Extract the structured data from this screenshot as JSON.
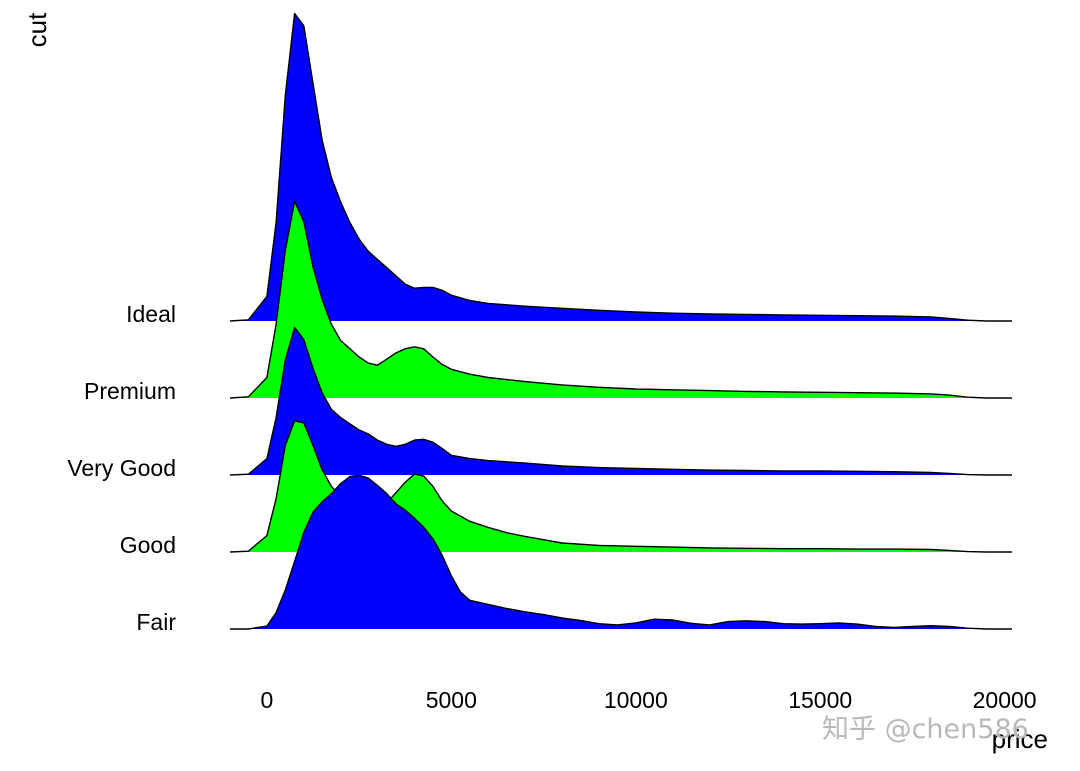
{
  "chart_data": {
    "type": "ridgeline",
    "xlabel": "price",
    "ylabel": "cut",
    "xlim": [
      -1000,
      20200
    ],
    "x_ticks": [
      0,
      5000,
      10000,
      15000,
      20000
    ],
    "x_tick_labels": [
      "0",
      "5000",
      "10000",
      "15000",
      "20000"
    ],
    "grid": false,
    "legend": "none",
    "categories": [
      "Fair",
      "Good",
      "Very Good",
      "Premium",
      "Ideal"
    ],
    "series": [
      {
        "name": "Fair",
        "color": "#0000ff",
        "density": [
          [
            -1000,
            0
          ],
          [
            -500,
            0
          ],
          [
            0,
            0.007
          ],
          [
            250,
            0.04
          ],
          [
            500,
            0.095
          ],
          [
            750,
            0.165
          ],
          [
            1000,
            0.235
          ],
          [
            1250,
            0.285
          ],
          [
            1500,
            0.31
          ],
          [
            1750,
            0.33
          ],
          [
            2000,
            0.355
          ],
          [
            2250,
            0.372
          ],
          [
            2500,
            0.375
          ],
          [
            2750,
            0.368
          ],
          [
            3000,
            0.35
          ],
          [
            3250,
            0.33
          ],
          [
            3500,
            0.305
          ],
          [
            3750,
            0.29
          ],
          [
            4000,
            0.27
          ],
          [
            4250,
            0.248
          ],
          [
            4500,
            0.22
          ],
          [
            4750,
            0.18
          ],
          [
            5000,
            0.13
          ],
          [
            5250,
            0.09
          ],
          [
            5500,
            0.07
          ],
          [
            6000,
            0.06
          ],
          [
            6500,
            0.05
          ],
          [
            7000,
            0.042
          ],
          [
            7500,
            0.035
          ],
          [
            8000,
            0.027
          ],
          [
            8500,
            0.021
          ],
          [
            9000,
            0.013
          ],
          [
            9500,
            0.01
          ],
          [
            10000,
            0.015
          ],
          [
            10500,
            0.024
          ],
          [
            11000,
            0.022
          ],
          [
            11500,
            0.014
          ],
          [
            12000,
            0.01
          ],
          [
            12500,
            0.018
          ],
          [
            13000,
            0.02
          ],
          [
            13500,
            0.018
          ],
          [
            14000,
            0.013
          ],
          [
            14500,
            0.012
          ],
          [
            15000,
            0.013
          ],
          [
            15500,
            0.015
          ],
          [
            16000,
            0.012
          ],
          [
            16500,
            0.006
          ],
          [
            17000,
            0.004
          ],
          [
            17500,
            0.006
          ],
          [
            18000,
            0.008
          ],
          [
            18500,
            0.006
          ],
          [
            19000,
            0.002
          ],
          [
            19500,
            0
          ],
          [
            20200,
            0
          ]
        ]
      },
      {
        "name": "Good",
        "color": "#00ff00",
        "density": [
          [
            -1000,
            0
          ],
          [
            -500,
            0.002
          ],
          [
            0,
            0.04
          ],
          [
            250,
            0.13
          ],
          [
            500,
            0.26
          ],
          [
            750,
            0.32
          ],
          [
            1000,
            0.315
          ],
          [
            1250,
            0.26
          ],
          [
            1500,
            0.2
          ],
          [
            1750,
            0.16
          ],
          [
            2000,
            0.135
          ],
          [
            2250,
            0.12
          ],
          [
            2500,
            0.105
          ],
          [
            2750,
            0.09
          ],
          [
            3000,
            0.095
          ],
          [
            3250,
            0.12
          ],
          [
            3500,
            0.145
          ],
          [
            3750,
            0.17
          ],
          [
            4000,
            0.19
          ],
          [
            4250,
            0.185
          ],
          [
            4500,
            0.16
          ],
          [
            4750,
            0.125
          ],
          [
            5000,
            0.1
          ],
          [
            5500,
            0.075
          ],
          [
            6000,
            0.06
          ],
          [
            6500,
            0.047
          ],
          [
            7000,
            0.038
          ],
          [
            7500,
            0.03
          ],
          [
            8000,
            0.022
          ],
          [
            9000,
            0.016
          ],
          [
            10000,
            0.014
          ],
          [
            11000,
            0.012
          ],
          [
            12000,
            0.01
          ],
          [
            13000,
            0.009
          ],
          [
            14000,
            0.008
          ],
          [
            15000,
            0.008
          ],
          [
            16000,
            0.007
          ],
          [
            17000,
            0.007
          ],
          [
            18000,
            0.006
          ],
          [
            18500,
            0.004
          ],
          [
            19000,
            0.001
          ],
          [
            19500,
            0
          ],
          [
            20200,
            0
          ]
        ]
      },
      {
        "name": "Very Good",
        "color": "#0000ff",
        "density": [
          [
            -1000,
            0
          ],
          [
            -500,
            0.002
          ],
          [
            0,
            0.04
          ],
          [
            250,
            0.14
          ],
          [
            500,
            0.28
          ],
          [
            750,
            0.36
          ],
          [
            1000,
            0.33
          ],
          [
            1250,
            0.26
          ],
          [
            1500,
            0.2
          ],
          [
            1750,
            0.16
          ],
          [
            2000,
            0.14
          ],
          [
            2250,
            0.125
          ],
          [
            2500,
            0.11
          ],
          [
            2750,
            0.1
          ],
          [
            3000,
            0.085
          ],
          [
            3250,
            0.075
          ],
          [
            3500,
            0.07
          ],
          [
            3750,
            0.075
          ],
          [
            4000,
            0.085
          ],
          [
            4250,
            0.087
          ],
          [
            4500,
            0.08
          ],
          [
            4750,
            0.065
          ],
          [
            5000,
            0.048
          ],
          [
            5500,
            0.04
          ],
          [
            6000,
            0.035
          ],
          [
            7000,
            0.029
          ],
          [
            8000,
            0.022
          ],
          [
            9000,
            0.018
          ],
          [
            10000,
            0.016
          ],
          [
            11000,
            0.014
          ],
          [
            12000,
            0.012
          ],
          [
            13000,
            0.011
          ],
          [
            14000,
            0.01
          ],
          [
            15000,
            0.01
          ],
          [
            16000,
            0.009
          ],
          [
            17000,
            0.008
          ],
          [
            18000,
            0.006
          ],
          [
            18500,
            0.004
          ],
          [
            19000,
            0.001
          ],
          [
            19500,
            0
          ],
          [
            20200,
            0
          ]
        ]
      },
      {
        "name": "Premium",
        "color": "#00ff00",
        "density": [
          [
            -1000,
            0
          ],
          [
            -500,
            0.003
          ],
          [
            0,
            0.05
          ],
          [
            250,
            0.18
          ],
          [
            500,
            0.36
          ],
          [
            750,
            0.48
          ],
          [
            1000,
            0.43
          ],
          [
            1250,
            0.32
          ],
          [
            1500,
            0.24
          ],
          [
            1750,
            0.18
          ],
          [
            2000,
            0.14
          ],
          [
            2250,
            0.12
          ],
          [
            2500,
            0.1
          ],
          [
            2750,
            0.085
          ],
          [
            3000,
            0.08
          ],
          [
            3250,
            0.095
          ],
          [
            3500,
            0.11
          ],
          [
            3750,
            0.12
          ],
          [
            4000,
            0.125
          ],
          [
            4250,
            0.12
          ],
          [
            4500,
            0.1
          ],
          [
            4750,
            0.082
          ],
          [
            5000,
            0.07
          ],
          [
            5500,
            0.058
          ],
          [
            6000,
            0.05
          ],
          [
            7000,
            0.04
          ],
          [
            8000,
            0.032
          ],
          [
            9000,
            0.026
          ],
          [
            10000,
            0.022
          ],
          [
            11000,
            0.02
          ],
          [
            12000,
            0.018
          ],
          [
            13000,
            0.016
          ],
          [
            14000,
            0.015
          ],
          [
            15000,
            0.014
          ],
          [
            16000,
            0.013
          ],
          [
            17000,
            0.012
          ],
          [
            18000,
            0.01
          ],
          [
            18500,
            0.007
          ],
          [
            19000,
            0.002
          ],
          [
            19500,
            0
          ],
          [
            20200,
            0
          ]
        ]
      },
      {
        "name": "Ideal",
        "color": "#0000ff",
        "density": [
          [
            -1000,
            0
          ],
          [
            -500,
            0.003
          ],
          [
            0,
            0.06
          ],
          [
            250,
            0.24
          ],
          [
            500,
            0.55
          ],
          [
            750,
            0.75
          ],
          [
            1000,
            0.72
          ],
          [
            1250,
            0.58
          ],
          [
            1500,
            0.44
          ],
          [
            1750,
            0.35
          ],
          [
            2000,
            0.29
          ],
          [
            2250,
            0.24
          ],
          [
            2500,
            0.2
          ],
          [
            2750,
            0.17
          ],
          [
            3000,
            0.15
          ],
          [
            3250,
            0.13
          ],
          [
            3500,
            0.11
          ],
          [
            3750,
            0.09
          ],
          [
            4000,
            0.08
          ],
          [
            4250,
            0.082
          ],
          [
            4500,
            0.082
          ],
          [
            4750,
            0.075
          ],
          [
            5000,
            0.063
          ],
          [
            5500,
            0.05
          ],
          [
            6000,
            0.043
          ],
          [
            7000,
            0.036
          ],
          [
            8000,
            0.031
          ],
          [
            9000,
            0.026
          ],
          [
            10000,
            0.022
          ],
          [
            11000,
            0.019
          ],
          [
            12000,
            0.017
          ],
          [
            13000,
            0.016
          ],
          [
            14000,
            0.015
          ],
          [
            15000,
            0.014
          ],
          [
            16000,
            0.013
          ],
          [
            17000,
            0.012
          ],
          [
            18000,
            0.01
          ],
          [
            18500,
            0.006
          ],
          [
            19000,
            0.002
          ],
          [
            19500,
            0
          ],
          [
            20200,
            0
          ]
        ]
      }
    ]
  },
  "watermark": {
    "text": "知乎 @chen586"
  }
}
